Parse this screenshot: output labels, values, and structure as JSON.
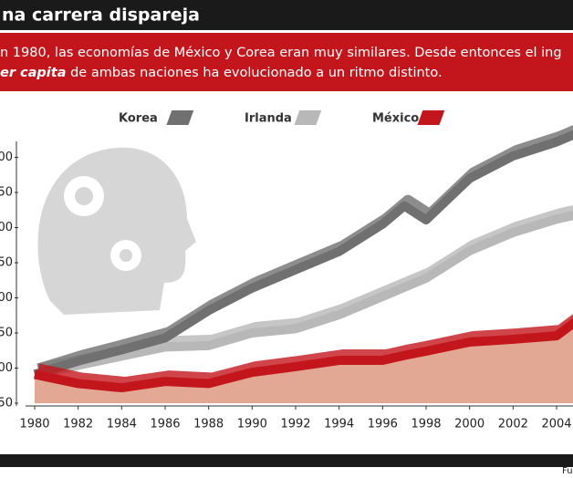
{
  "chart_data": {
    "type": "line",
    "title": "na carrera dispareja",
    "subtitle_lines": [
      [
        "n 1980, las economías de México y Corea eran muy similares. Desde entonces el ing"
      ],
      [
        "er capita",
        " de ambas naciones ha evolucionado a un ritmo distinto."
      ]
    ],
    "source": "Fu",
    "x": [
      1980,
      1982,
      1984,
      1986,
      1988,
      1990,
      1992,
      1994,
      1996,
      1997,
      1998,
      2000,
      2002,
      2004,
      2005
    ],
    "series": [
      {
        "name": "Korea",
        "color": "#707070",
        "values": [
          91,
          110,
          126,
          143,
          182,
          214,
          240,
          266,
          305,
          331,
          311,
          370,
          402,
          422,
          435
        ]
      },
      {
        "name": "Irlanda",
        "color": "#b8b8b8",
        "values": [
          91,
          104,
          117,
          130,
          132,
          150,
          156,
          176,
          202,
          215,
          228,
          267,
          293,
          312,
          319
        ]
      },
      {
        "name": "México",
        "color": "#c3161c",
        "values": [
          91,
          78,
          72,
          81,
          78,
          94,
          102,
          111,
          111,
          118,
          124,
          137,
          141,
          146,
          169
        ]
      }
    ],
    "xlim": [
      1979.8,
      2005.3
    ],
    "xticks": [
      1980,
      1982,
      1984,
      1986,
      1988,
      1990,
      1992,
      1994,
      1996,
      1998,
      2000,
      2002,
      2004
    ],
    "ylim": [
      50,
      450
    ],
    "yticks": [
      50,
      {
        "value": 100,
        "label": "00"
      },
      {
        "value": 150,
        "label": "50"
      },
      {
        "value": 200,
        "label": "00"
      },
      {
        "value": 250,
        "label": "50"
      },
      {
        "value": 300,
        "label": "00"
      },
      {
        "value": 350,
        "label": "50"
      },
      {
        "value": 400,
        "label": "00"
      }
    ]
  }
}
